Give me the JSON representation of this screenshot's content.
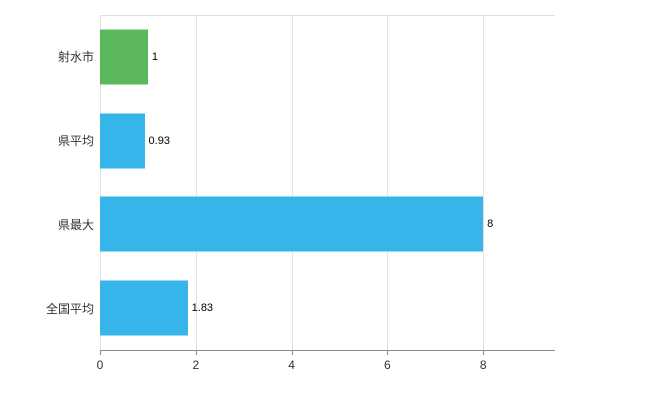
{
  "chart_data": {
    "type": "bar",
    "orientation": "horizontal",
    "title": "",
    "categories": [
      "射水市",
      "県平均",
      "県最大",
      "全国平均"
    ],
    "values": [
      1,
      0.93,
      8,
      1.83
    ],
    "value_labels": [
      "1",
      "0.93",
      "8",
      "1.83"
    ],
    "bar_colors": [
      "#5cb85c",
      "#35b5ea",
      "#35b5ea",
      "#35b5ea"
    ],
    "xlim": [
      0,
      9.5
    ],
    "xticks": [
      "0",
      "2",
      "4",
      "6",
      "8"
    ],
    "xtick_values": [
      0,
      2,
      4,
      6,
      8
    ],
    "grid": true,
    "legend": "none",
    "background_color": "#ffffff",
    "gridline_color": "#e2e2e2",
    "axis_color": "#8a8a8a"
  }
}
